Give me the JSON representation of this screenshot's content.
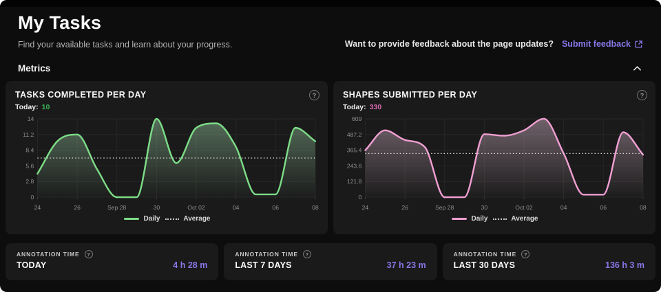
{
  "page": {
    "title": "My Tasks",
    "subtitle": "Find your available tasks and learn about your progress.",
    "feedback_prompt": "Want to provide feedback about the page updates?",
    "feedback_link": "Submit feedback",
    "section_label": "Metrics",
    "help_glyph": "?"
  },
  "colors": {
    "accent_purple": "#8677e6",
    "green_line": "#7ddc87",
    "green_fill": "#8fbf97",
    "green_value": "#3db457",
    "pink_line": "#ef9ed2",
    "pink_fill": "#c5a9ba",
    "pink_value": "#d66bb0",
    "card_bg": "#1a1a1a",
    "page_bg": "#0d0d0d"
  },
  "charts": [
    {
      "title": "TASKS COMPLETED PER DAY",
      "today_label": "Today:",
      "today_value": "10",
      "legend_daily": "Daily",
      "legend_average": "Average",
      "line_color": "#7ddc87",
      "fill_color": "#8fbf97",
      "value_color": "#3db457",
      "chart_data": {
        "type": "area",
        "x": [
          "Sep 24",
          "Sep 25",
          "Sep 26",
          "Sep 27",
          "Sep 28",
          "Sep 29",
          "Sep 30",
          "Oct 01",
          "Oct 02",
          "Oct 03",
          "Oct 04",
          "Oct 05",
          "Oct 06",
          "Oct 07",
          "Oct 08"
        ],
        "x_tick_labels": [
          "24",
          "26",
          "Sep 28",
          "30",
          "Oct 02",
          "04",
          "06",
          "08"
        ],
        "values": [
          4.2,
          10,
          11.2,
          5,
          0,
          0,
          14,
          6.1,
          12.4,
          13.2,
          9,
          0.5,
          0.5,
          12.4,
          10
        ],
        "average": 7,
        "y_ticks": [
          0,
          2.8,
          5.6,
          8.4,
          11.2,
          14
        ],
        "ylim": [
          0,
          14
        ],
        "grid": true,
        "legend_position": "bottom"
      }
    },
    {
      "title": "SHAPES SUBMITTED PER DAY",
      "today_label": "Today:",
      "today_value": "330",
      "legend_daily": "Daily",
      "legend_average": "Average",
      "line_color": "#ef9ed2",
      "fill_color": "#c5a9ba",
      "value_color": "#d66bb0",
      "chart_data": {
        "type": "area",
        "x": [
          "Sep 24",
          "Sep 25",
          "Sep 26",
          "Sep 27",
          "Sep 28",
          "Sep 29",
          "Sep 30",
          "Oct 01",
          "Oct 02",
          "Oct 03",
          "Oct 04",
          "Oct 05",
          "Oct 06",
          "Oct 07",
          "Oct 08"
        ],
        "x_tick_labels": [
          "24",
          "26",
          "Sep 28",
          "30",
          "Oct 02",
          "04",
          "06",
          "08"
        ],
        "values": [
          365,
          520,
          445,
          390,
          0,
          0,
          490,
          478,
          520,
          610,
          340,
          20,
          20,
          505,
          330
        ],
        "average": 340,
        "y_ticks": [
          0,
          121.8,
          243.6,
          365.4,
          487.2,
          609
        ],
        "ylim": [
          0,
          609
        ],
        "grid": true,
        "legend_position": "bottom"
      }
    }
  ],
  "annotation_cards": [
    {
      "label": "ANNOTATION TIME",
      "period": "TODAY",
      "value": "4 h 28 m"
    },
    {
      "label": "ANNOTATION TIME",
      "period": "LAST 7 DAYS",
      "value": "37 h 23 m"
    },
    {
      "label": "ANNOTATION TIME",
      "period": "LAST 30 DAYS",
      "value": "136 h 3 m"
    }
  ]
}
